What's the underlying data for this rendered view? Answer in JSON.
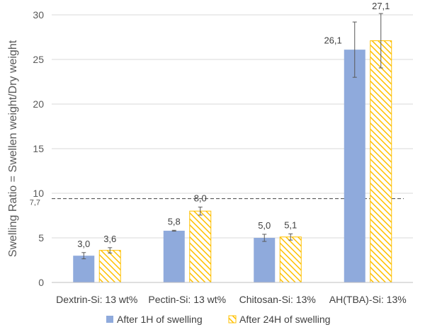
{
  "chart_data": {
    "type": "bar",
    "title": "",
    "xlabel": "",
    "ylabel": "Swelling Ratio = Swellen weight/Dry weight",
    "ylim": [
      0,
      30
    ],
    "yticks": [
      "0",
      "5",
      "10",
      "15",
      "20",
      "25",
      "30"
    ],
    "grid": true,
    "legend_position": "bottom",
    "categories": [
      "Dextrin-Si: 13 wt%",
      "Pectin-Si: 13 wt%",
      "Chitosan-Si: 13%",
      "AH(TBA)-Si: 13%"
    ],
    "series": [
      {
        "name": "After 1H of swelling",
        "color": "#8faadc",
        "pattern": "solid",
        "values": [
          3.0,
          5.8,
          5.0,
          26.1
        ],
        "labels": [
          "3,0",
          "5,8",
          "5,0",
          "26,1"
        ],
        "errors": [
          0.35,
          0.05,
          0.4,
          3.1
        ]
      },
      {
        "name": "After 24H of swelling",
        "color": "#ffc000",
        "pattern": "diagonal-hatch",
        "values": [
          3.6,
          8.0,
          5.1,
          27.1
        ],
        "labels": [
          "3,6",
          "8,0",
          "5,1",
          "27,1"
        ],
        "errors": [
          0.3,
          0.45,
          0.35,
          3.05
        ]
      }
    ],
    "reference_line": {
      "value": 9.4,
      "label": "7,7",
      "style": "dashed",
      "color": "#595959"
    }
  }
}
